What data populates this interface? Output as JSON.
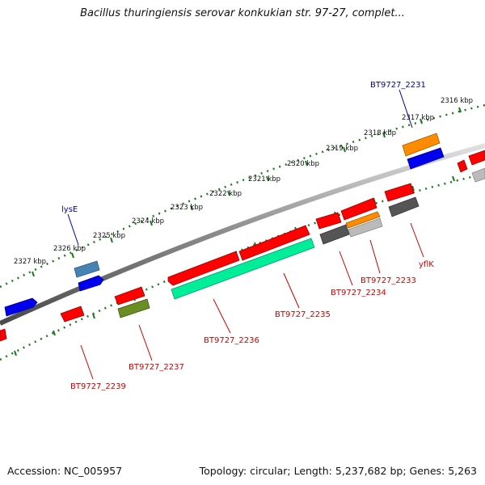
{
  "title": "Bacillus thuringiensis serovar konkukian str. 97-27, complet...",
  "footer": {
    "accession": "Accession: NC_005957",
    "summary": "Topology: circular; Length: 5,237,682 bp; Genes: 5,263"
  },
  "scale_labels": [
    "2327 kbp",
    "2326 kbp",
    "2325 kbp",
    "2324 kbp",
    "2323 kbp",
    "2322 kbp",
    "2321 kbp",
    "2320 kbp",
    "2319 kbp",
    "2318 kbp",
    "2317 kbp",
    "2316 kbp"
  ],
  "gene_labels": {
    "bt9727_2231": "BT9727_2231",
    "lyse": "lysE",
    "yflk": "yflK",
    "bt9727_2233": "BT9727_2233",
    "bt9727_2234": "BT9727_2234",
    "bt9727_2235": "BT9727_2235",
    "bt9727_2236": "BT9727_2236",
    "bt9727_2237": "BT9727_2237",
    "bt9727_2239": "BT9727_2239"
  },
  "colors": {
    "backbone": "#8a8a8a",
    "tick": "#1f7a1f",
    "cds_red": "#ff0000",
    "blue": "#0000ee",
    "orange": "#ff8c00",
    "steel": "#4682b4",
    "olive": "#6b8e23",
    "teal": "#00ee99",
    "dark_gray": "#555555",
    "light_gray": "#bbbbbb",
    "label_red": "#cc0000",
    "label_blue": "#0000aa"
  }
}
